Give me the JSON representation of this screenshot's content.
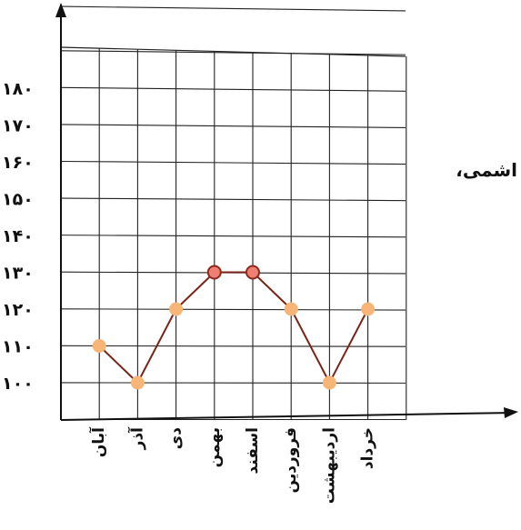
{
  "side_text": "اشمی،",
  "chart_data": {
    "type": "line",
    "categories": [
      "آبان",
      "آذر",
      "دی",
      "بهمن",
      "اسفند",
      "فروردین",
      "اردیبهشت",
      "خرداد"
    ],
    "values": [
      110,
      100,
      120,
      130,
      130,
      120,
      100,
      120
    ],
    "y_tick_labels": [
      "۱۰۰",
      "۱۱۰",
      "۱۲۰",
      "۱۳۰",
      "۱۴۰",
      "۱۵۰",
      "۱۶۰",
      "۱۷۰",
      "۱۸۰"
    ],
    "y_tick_values": [
      100,
      110,
      120,
      130,
      140,
      150,
      160,
      170,
      180
    ],
    "ylim": [
      100,
      180
    ],
    "grid": true,
    "colors": {
      "line": "#7a2417",
      "marker_fill": "#f7b678",
      "marker_peak_fill": "#ef7f72",
      "marker_peak_stroke": "#8a2a1c",
      "grid": "#222222",
      "axis": "#111111"
    }
  }
}
